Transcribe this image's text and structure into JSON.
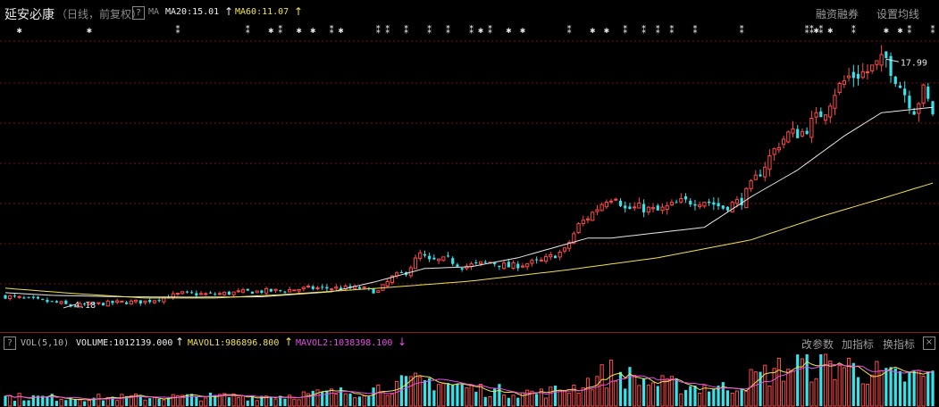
{
  "header": {
    "stock_name": "延安必康",
    "period": "（日线，前复权）",
    "help_label": "?",
    "ma_label": "MA",
    "ma20": "MA20:15.01",
    "ma60": "MA60:11.07",
    "up_arrow": "↑",
    "margin_trading": "融资融券",
    "ma_settings": "设置均线"
  },
  "volume_panel": {
    "help_label": "?",
    "title": "VOL(5,10)",
    "volume": "VOLUME:1012139.000",
    "mavol1": "MAVOL1:986896.800",
    "mavol2": "MAVOL2:1038398.100",
    "up_arrow": "↑",
    "down_arrow": "↓",
    "params": "改参数",
    "add_indicator": "加指标",
    "swap_indicator": "换指标",
    "close": "×"
  },
  "colors": {
    "up": "#ff4a4a",
    "down": "#35e5ec",
    "ma20": "#e8e8e8",
    "ma60": "#f2e34a",
    "mavol1": "#f2e34a",
    "mavol2": "#e64fe6",
    "grid": "#7a1010",
    "marker": "#e8e8e8"
  },
  "chart_data": [
    {
      "type": "candlestick",
      "ylim": [
        3.2,
        19
      ],
      "ma_series": [
        {
          "name": "MA20",
          "anchors": [
            [
              0,
              4.95
            ],
            [
              10,
              4.8
            ],
            [
              25,
              4.72
            ],
            [
              40,
              4.7
            ],
            [
              55,
              4.72
            ],
            [
              70,
              5.0
            ],
            [
              80,
              5.6
            ],
            [
              90,
              6.3
            ],
            [
              100,
              6.4
            ],
            [
              110,
              6.9
            ],
            [
              125,
              8.0
            ],
            [
              130,
              8.0
            ],
            [
              140,
              8.3
            ],
            [
              150,
              8.6
            ],
            [
              160,
              10.3
            ],
            [
              170,
              11.8
            ],
            [
              180,
              13.7
            ],
            [
              188,
              15.0
            ],
            [
              199,
              15.3
            ]
          ]
        },
        {
          "name": "MA60",
          "anchors": [
            [
              0,
              5.2
            ],
            [
              15,
              4.9
            ],
            [
              30,
              4.65
            ],
            [
              45,
              4.65
            ],
            [
              60,
              4.85
            ],
            [
              80,
              5.2
            ],
            [
              100,
              5.6
            ],
            [
              120,
              6.2
            ],
            [
              140,
              6.9
            ],
            [
              160,
              7.9
            ],
            [
              175,
              9.2
            ],
            [
              188,
              10.2
            ],
            [
              199,
              11.07
            ]
          ]
        }
      ],
      "price_anchors": [
        [
          0,
          4.75
        ],
        [
          6,
          4.55
        ],
        [
          12,
          4.35
        ],
        [
          14,
          4.2
        ],
        [
          24,
          4.4
        ],
        [
          30,
          4.45
        ],
        [
          38,
          4.9
        ],
        [
          44,
          4.85
        ],
        [
          52,
          5.0
        ],
        [
          58,
          5.05
        ],
        [
          66,
          5.2
        ],
        [
          72,
          5.2
        ],
        [
          76,
          5.2
        ],
        [
          80,
          5.0
        ],
        [
          83,
          5.8
        ],
        [
          86,
          6.1
        ],
        [
          89,
          7.1
        ],
        [
          91,
          6.7
        ],
        [
          95,
          6.8
        ],
        [
          98,
          6.4
        ],
        [
          104,
          6.65
        ],
        [
          108,
          6.4
        ],
        [
          115,
          6.7
        ],
        [
          120,
          7.3
        ],
        [
          123,
          8.7
        ],
        [
          126,
          9.4
        ],
        [
          129,
          10.2
        ],
        [
          131,
          10.4
        ],
        [
          133,
          9.6
        ],
        [
          136,
          9.7
        ],
        [
          140,
          9.5
        ],
        [
          145,
          10.0
        ],
        [
          150,
          10.1
        ],
        [
          154,
          9.7
        ],
        [
          158,
          10.1
        ],
        [
          162,
          11.7
        ],
        [
          166,
          13.3
        ],
        [
          168,
          13.8
        ],
        [
          171,
          13.9
        ],
        [
          176,
          15.2
        ],
        [
          178,
          16.2
        ],
        [
          181,
          17.0
        ],
        [
          185,
          17.3
        ],
        [
          189,
          17.99
        ],
        [
          192,
          16.5
        ],
        [
          195,
          15.2
        ],
        [
          197,
          16.2
        ],
        [
          199,
          15.0
        ]
      ],
      "high_label": "17.99",
      "low_label": "4.18"
    },
    {
      "type": "bar",
      "series_names": [
        "VOLUME",
        "MAVOL1",
        "MAVOL2"
      ],
      "level_anchors": [
        [
          0,
          0.18
        ],
        [
          20,
          0.16
        ],
        [
          40,
          0.18
        ],
        [
          60,
          0.2
        ],
        [
          75,
          0.28
        ],
        [
          85,
          0.42
        ],
        [
          92,
          0.5
        ],
        [
          100,
          0.33
        ],
        [
          115,
          0.25
        ],
        [
          122,
          0.36
        ],
        [
          130,
          0.65
        ],
        [
          140,
          0.42
        ],
        [
          155,
          0.35
        ],
        [
          162,
          0.58
        ],
        [
          170,
          0.8
        ],
        [
          180,
          0.78
        ],
        [
          190,
          0.55
        ],
        [
          199,
          0.58
        ]
      ]
    }
  ]
}
